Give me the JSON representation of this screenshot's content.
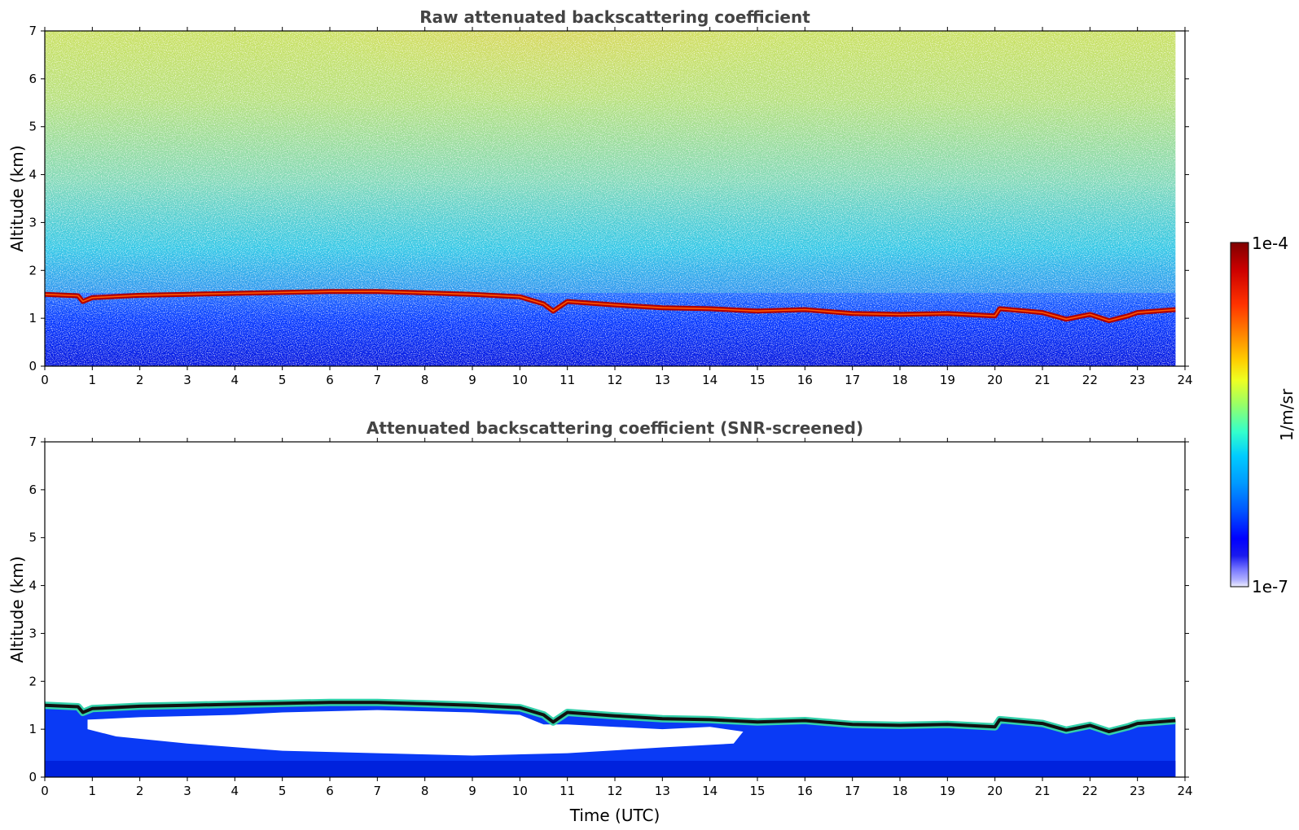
{
  "chart_data": [
    {
      "type": "heatmap",
      "title": "Raw attenuated backscattering coefficient",
      "xlabel": "",
      "ylabel": "Altitude (km)",
      "xlim": [
        0,
        24
      ],
      "ylim": [
        0,
        7
      ],
      "x_ticks": [
        0,
        1,
        2,
        3,
        4,
        5,
        6,
        7,
        8,
        9,
        10,
        11,
        12,
        13,
        14,
        15,
        16,
        17,
        18,
        19,
        20,
        21,
        22,
        23,
        24
      ],
      "y_ticks": [
        0,
        1,
        2,
        3,
        4,
        5,
        6,
        7
      ],
      "data_end_time": 23.8,
      "cloud_layer": {
        "description": "layer base altitude (km) vs time (UTC)",
        "time": [
          0,
          0.7,
          0.8,
          1,
          2,
          3,
          4,
          5,
          6,
          7,
          8,
          9,
          10,
          10.5,
          10.7,
          11,
          12,
          13,
          14,
          15,
          16,
          17,
          18,
          19,
          20,
          20.1,
          21,
          21.5,
          22,
          22.4,
          22.8,
          23,
          23.8
        ],
        "altitude": [
          1.5,
          1.47,
          1.35,
          1.43,
          1.48,
          1.5,
          1.52,
          1.54,
          1.56,
          1.56,
          1.53,
          1.5,
          1.45,
          1.3,
          1.15,
          1.35,
          1.28,
          1.22,
          1.2,
          1.15,
          1.18,
          1.1,
          1.08,
          1.1,
          1.05,
          1.2,
          1.12,
          0.98,
          1.08,
          0.95,
          1.05,
          1.12,
          1.18
        ]
      }
    },
    {
      "type": "heatmap",
      "title": "Attenuated backscattering coefficient (SNR-screened)",
      "xlabel": "Time (UTC)",
      "ylabel": "Altitude (km)",
      "xlim": [
        0,
        24
      ],
      "ylim": [
        0,
        7
      ],
      "x_ticks": [
        0,
        1,
        2,
        3,
        4,
        5,
        6,
        7,
        8,
        9,
        10,
        11,
        12,
        13,
        14,
        15,
        16,
        17,
        18,
        19,
        20,
        21,
        22,
        23,
        24
      ],
      "y_ticks": [
        0,
        1,
        2,
        3,
        4,
        5,
        6,
        7
      ],
      "data_end_time": 23.8
    }
  ],
  "colorbar": {
    "label": "1/m/sr",
    "max_label": "1e-4",
    "min_label": "1e-7",
    "colors": [
      "#7f0000",
      "#cc0000",
      "#ff3300",
      "#ff8800",
      "#ffcc00",
      "#eeff22",
      "#99ff66",
      "#33ffcc",
      "#00ccff",
      "#0099ff",
      "#0055ff",
      "#0000ff",
      "#0022ee",
      "#6666ff",
      "#aaaaff",
      "#e8e8ff"
    ]
  }
}
